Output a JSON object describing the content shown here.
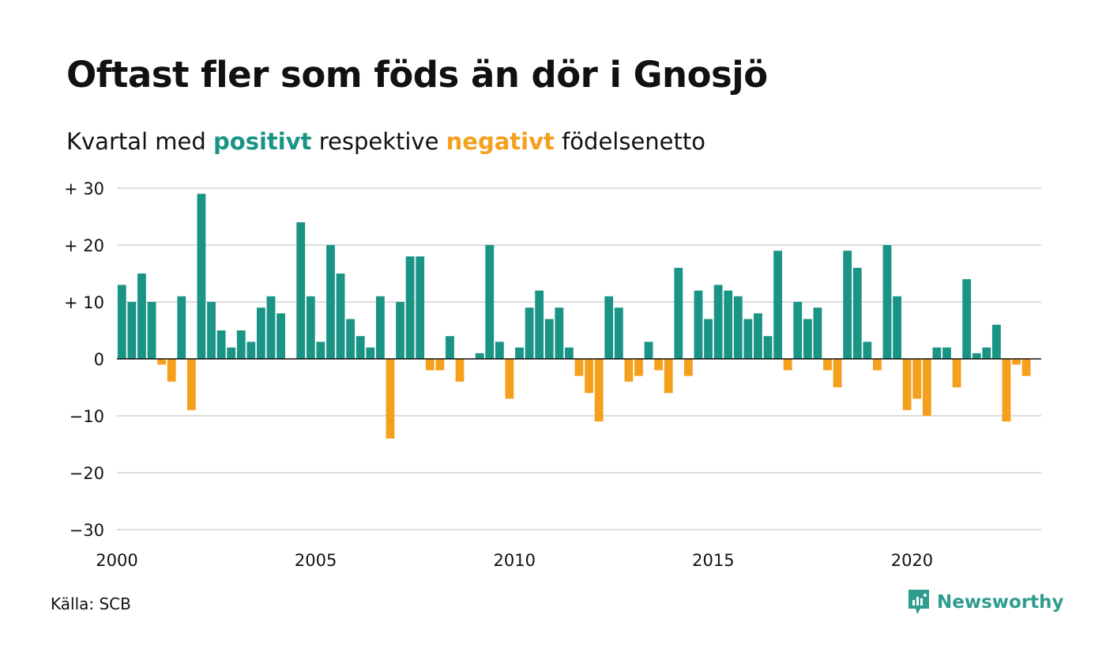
{
  "title": "Oftast fler som föds än dör i Gnosjö",
  "subtitle": {
    "prefix": "Kvartal med",
    "positive": "positivt",
    "middle": "respektive",
    "negative": "negativt",
    "suffix": "födelsenetto"
  },
  "source": "Källa: SCB",
  "brand": "Newsworthy",
  "colors": {
    "positive": "#1a9485",
    "negative": "#f5a01d",
    "grid": "#dddddd",
    "zero": "#111111",
    "brand": "#2f9c8f"
  },
  "chart_data": {
    "type": "bar",
    "grid": true,
    "ylim": [
      -30,
      30
    ],
    "yticks": [
      30,
      20,
      10,
      0,
      -10,
      -20,
      -30
    ],
    "ytick_labels": [
      "+ 30",
      "+ 20",
      "+ 10",
      "0",
      "−10",
      "−20",
      "−30"
    ],
    "xlim": [
      2000,
      2023.25
    ],
    "xticks": [
      2000,
      2005,
      2010,
      2015,
      2020
    ],
    "xtick_labels": [
      "2000",
      "2005",
      "2010",
      "2015",
      "2020"
    ],
    "x": [
      "2000 Q1",
      "2000 Q2",
      "2000 Q3",
      "2000 Q4",
      "2001 Q1",
      "2001 Q2",
      "2001 Q3",
      "2001 Q4",
      "2002 Q1",
      "2002 Q2",
      "2002 Q3",
      "2002 Q4",
      "2003 Q1",
      "2003 Q2",
      "2003 Q3",
      "2003 Q4",
      "2004 Q1",
      "2004 Q2",
      "2004 Q3",
      "2004 Q4",
      "2005 Q1",
      "2005 Q2",
      "2005 Q3",
      "2005 Q4",
      "2006 Q1",
      "2006 Q2",
      "2006 Q3",
      "2006 Q4",
      "2007 Q1",
      "2007 Q2",
      "2007 Q3",
      "2007 Q4",
      "2008 Q1",
      "2008 Q2",
      "2008 Q3",
      "2008 Q4",
      "2009 Q1",
      "2009 Q2",
      "2009 Q3",
      "2009 Q4",
      "2010 Q1",
      "2010 Q2",
      "2010 Q3",
      "2010 Q4",
      "2011 Q1",
      "2011 Q2",
      "2011 Q3",
      "2011 Q4",
      "2012 Q1",
      "2012 Q2",
      "2012 Q3",
      "2012 Q4",
      "2013 Q1",
      "2013 Q2",
      "2013 Q3",
      "2013 Q4",
      "2014 Q1",
      "2014 Q2",
      "2014 Q3",
      "2014 Q4",
      "2015 Q1",
      "2015 Q2",
      "2015 Q3",
      "2015 Q4",
      "2016 Q1",
      "2016 Q2",
      "2016 Q3",
      "2016 Q4",
      "2017 Q1",
      "2017 Q2",
      "2017 Q3",
      "2017 Q4",
      "2018 Q1",
      "2018 Q2",
      "2018 Q3",
      "2018 Q4",
      "2019 Q1",
      "2019 Q2",
      "2019 Q3",
      "2019 Q4",
      "2020 Q1",
      "2020 Q2",
      "2020 Q3",
      "2020 Q4",
      "2021 Q1",
      "2021 Q2",
      "2021 Q3",
      "2021 Q4",
      "2022 Q1",
      "2022 Q2",
      "2022 Q3",
      "2022 Q4",
      "2023 Q1"
    ],
    "values": [
      13,
      10,
      15,
      10,
      -1,
      -4,
      11,
      -9,
      29,
      10,
      5,
      2,
      5,
      3,
      9,
      11,
      8,
      0,
      24,
      11,
      3,
      20,
      15,
      7,
      4,
      2,
      11,
      -14,
      10,
      18,
      18,
      -2,
      -2,
      4,
      -4,
      0,
      1,
      20,
      3,
      -7,
      2,
      9,
      12,
      7,
      9,
      2,
      -3,
      -6,
      -11,
      11,
      9,
      -4,
      -3,
      3,
      -2,
      -6,
      16,
      -3,
      12,
      7,
      13,
      12,
      11,
      7,
      8,
      4,
      19,
      -2,
      10,
      7,
      9,
      -2,
      -5,
      19,
      16,
      3,
      -2,
      20,
      11,
      -9,
      -7,
      -10,
      2,
      2,
      -5,
      14,
      1,
      2,
      6,
      -11,
      -1,
      -3,
      0
    ]
  }
}
